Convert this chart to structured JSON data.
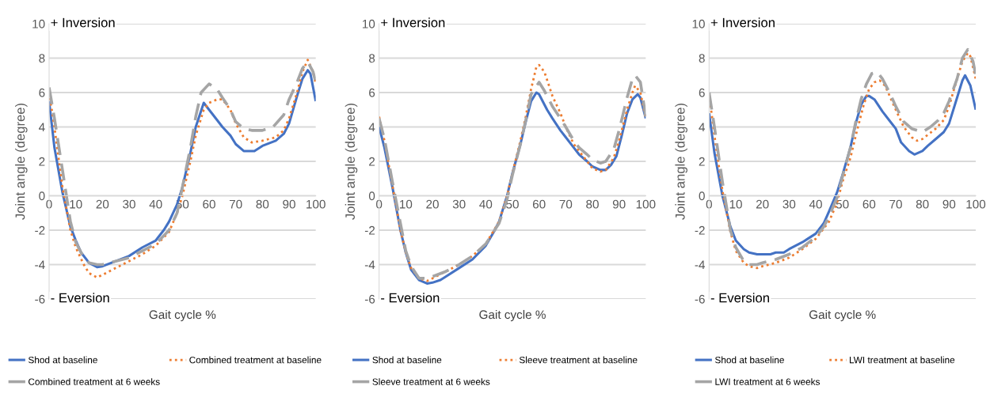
{
  "chart_data": [
    {
      "type": "line",
      "xlabel": "Gait cycle %",
      "ylabel": "Joint angle (degree)",
      "xlim": [
        0,
        100
      ],
      "xticks": [
        0,
        10,
        20,
        30,
        40,
        50,
        60,
        70,
        80,
        90,
        100
      ],
      "ylim": [
        -6,
        10
      ],
      "yticks": [
        -6,
        -4,
        -2,
        0,
        2,
        4,
        6,
        8,
        10
      ],
      "grid": "y",
      "legend": "bottom",
      "annotations": [
        "+ Inversion",
        "- Eversion"
      ],
      "series": [
        {
          "name": "Shod at baseline",
          "color": "#4472c4",
          "line_style": "solid",
          "x": [
            0,
            2,
            5,
            8,
            10,
            12,
            15,
            18,
            20,
            25,
            30,
            35,
            40,
            43,
            45,
            48,
            50,
            53,
            55,
            58,
            60,
            63,
            65,
            68,
            70,
            73,
            77,
            80,
            85,
            88,
            90,
            93,
            95,
            97,
            98,
            100
          ],
          "values": [
            5.5,
            2.8,
            0.2,
            -1.8,
            -2.6,
            -3.3,
            -3.9,
            -4.15,
            -4.1,
            -3.8,
            -3.5,
            -3.0,
            -2.6,
            -2.0,
            -1.5,
            -0.5,
            0.5,
            2.5,
            4.0,
            5.4,
            5.0,
            4.4,
            4.0,
            3.5,
            3.0,
            2.6,
            2.6,
            2.9,
            3.2,
            3.6,
            4.2,
            5.8,
            6.8,
            7.3,
            7.1,
            5.5
          ]
        },
        {
          "name": "Combined treatment at baseline",
          "color": "#ed7d31",
          "line_style": "dotted",
          "x": [
            0,
            2,
            5,
            8,
            10,
            13,
            15,
            18,
            20,
            25,
            30,
            35,
            40,
            45,
            48,
            50,
            53,
            55,
            58,
            60,
            63,
            65,
            68,
            70,
            73,
            76,
            80,
            85,
            88,
            90,
            93,
            95,
            97,
            99,
            100
          ],
          "values": [
            6.0,
            4.0,
            0.5,
            -2.0,
            -3.0,
            -4.0,
            -4.5,
            -4.75,
            -4.6,
            -4.2,
            -3.8,
            -3.4,
            -2.9,
            -2.1,
            -1.0,
            0.0,
            2.0,
            3.5,
            5.0,
            5.4,
            5.6,
            5.6,
            5.0,
            4.2,
            3.4,
            3.1,
            3.2,
            3.4,
            3.8,
            4.5,
            6.0,
            7.2,
            7.9,
            7.2,
            6.5
          ]
        },
        {
          "name": "Combined treatment at 6 weeks",
          "color": "#a5a5a5",
          "line_style": "dashed",
          "x": [
            0,
            2,
            5,
            8,
            10,
            13,
            15,
            18,
            20,
            25,
            30,
            35,
            40,
            45,
            48,
            50,
            53,
            55,
            57,
            60,
            63,
            65,
            68,
            70,
            73,
            76,
            80,
            84,
            88,
            90,
            93,
            95,
            97,
            99,
            100
          ],
          "values": [
            6.3,
            4.5,
            1.5,
            -1.5,
            -2.7,
            -3.6,
            -3.9,
            -4.0,
            -4.0,
            -3.8,
            -3.6,
            -3.2,
            -2.8,
            -2.0,
            -1.0,
            0.5,
            2.8,
            4.6,
            6.0,
            6.5,
            6.2,
            5.7,
            5.0,
            4.3,
            3.9,
            3.8,
            3.8,
            4.0,
            4.7,
            5.6,
            6.6,
            7.4,
            7.8,
            7.2,
            6.6
          ]
        }
      ]
    },
    {
      "type": "line",
      "xlabel": "Gait cycle %",
      "ylabel": "Joint angle (degree)",
      "xlim": [
        0,
        100
      ],
      "xticks": [
        0,
        10,
        20,
        30,
        40,
        50,
        60,
        70,
        80,
        90,
        100
      ],
      "ylim": [
        -6,
        10
      ],
      "yticks": [
        -6,
        -4,
        -2,
        0,
        2,
        4,
        6,
        8,
        10
      ],
      "grid": "y",
      "legend": "bottom",
      "annotations": [
        "+ Inversion",
        "- Eversion"
      ],
      "series": [
        {
          "name": "Shod at baseline",
          "color": "#4472c4",
          "line_style": "solid",
          "x": [
            0,
            2,
            5,
            8,
            10,
            12,
            15,
            18,
            20,
            23,
            25,
            30,
            35,
            40,
            43,
            45,
            48,
            50,
            53,
            55,
            57,
            59,
            60,
            63,
            65,
            68,
            70,
            73,
            75,
            78,
            80,
            83,
            85,
            87,
            89,
            91,
            93,
            95,
            97,
            98,
            100
          ],
          "values": [
            4.0,
            2.8,
            0.5,
            -2.0,
            -3.3,
            -4.3,
            -4.9,
            -5.1,
            -5.05,
            -4.9,
            -4.7,
            -4.2,
            -3.7,
            -2.9,
            -2.1,
            -1.5,
            0.0,
            1.3,
            3.0,
            4.3,
            5.5,
            6.0,
            5.9,
            5.0,
            4.5,
            3.8,
            3.4,
            2.8,
            2.4,
            2.0,
            1.7,
            1.5,
            1.5,
            1.8,
            2.3,
            3.5,
            4.8,
            5.6,
            5.9,
            5.7,
            4.5
          ]
        },
        {
          "name": "Sleeve treatment at baseline",
          "color": "#ed7d31",
          "line_style": "dotted",
          "x": [
            0,
            2,
            5,
            8,
            10,
            12,
            15,
            18,
            20,
            25,
            30,
            35,
            40,
            45,
            48,
            50,
            53,
            55,
            57,
            59,
            60,
            62,
            65,
            68,
            70,
            73,
            75,
            78,
            80,
            83,
            85,
            88,
            90,
            93,
            95,
            96,
            98,
            100
          ],
          "values": [
            4.6,
            3.2,
            0.6,
            -2.0,
            -3.3,
            -4.2,
            -4.8,
            -4.95,
            -4.8,
            -4.4,
            -4.0,
            -3.5,
            -2.8,
            -1.5,
            0.0,
            1.3,
            3.2,
            4.6,
            6.2,
            7.5,
            7.6,
            7.2,
            5.8,
            4.8,
            4.0,
            3.0,
            2.6,
            2.0,
            1.6,
            1.4,
            1.5,
            2.2,
            3.2,
            5.0,
            6.0,
            6.4,
            6.0,
            4.5
          ]
        },
        {
          "name": "Sleeve treatment at 6 weeks",
          "color": "#a5a5a5",
          "line_style": "dashed",
          "x": [
            0,
            2,
            5,
            8,
            10,
            12,
            15,
            18,
            20,
            25,
            30,
            35,
            40,
            45,
            48,
            50,
            53,
            55,
            57,
            60,
            62,
            65,
            68,
            70,
            73,
            75,
            78,
            80,
            83,
            85,
            88,
            90,
            93,
            95,
            96,
            98,
            100
          ],
          "values": [
            4.5,
            3.3,
            0.8,
            -1.6,
            -3.2,
            -4.1,
            -4.8,
            -4.8,
            -4.7,
            -4.4,
            -4.0,
            -3.5,
            -2.8,
            -1.6,
            -0.2,
            1.2,
            3.0,
            4.4,
            5.9,
            6.6,
            6.1,
            5.2,
            4.5,
            4.0,
            3.2,
            2.8,
            2.4,
            2.1,
            1.9,
            2.0,
            2.7,
            3.8,
            5.7,
            6.8,
            7.0,
            6.6,
            4.6
          ]
        }
      ]
    },
    {
      "type": "line",
      "xlabel": "Gait cycle %",
      "ylabel": "Joint angle (degree)",
      "xlim": [
        0,
        100
      ],
      "xticks": [
        0,
        10,
        20,
        30,
        40,
        50,
        60,
        70,
        80,
        90,
        100
      ],
      "ylim": [
        -6,
        10
      ],
      "yticks": [
        -6,
        -4,
        -2,
        0,
        2,
        4,
        6,
        8,
        10
      ],
      "grid": "y",
      "legend": "bottom",
      "annotations": [
        "+ Inversion",
        "- Eversion"
      ],
      "series": [
        {
          "name": "Shod at baseline",
          "color": "#4472c4",
          "line_style": "solid",
          "x": [
            0,
            2,
            5,
            8,
            10,
            13,
            15,
            18,
            20,
            23,
            25,
            28,
            30,
            35,
            40,
            43,
            45,
            48,
            50,
            53,
            55,
            57,
            59,
            60,
            62,
            65,
            68,
            70,
            72,
            75,
            77,
            80,
            82,
            85,
            88,
            90,
            93,
            95,
            96,
            98,
            100
          ],
          "values": [
            4.8,
            2.5,
            0.0,
            -1.8,
            -2.6,
            -3.1,
            -3.3,
            -3.4,
            -3.4,
            -3.4,
            -3.3,
            -3.3,
            -3.1,
            -2.7,
            -2.2,
            -1.6,
            -0.9,
            0.2,
            1.2,
            2.8,
            4.2,
            5.3,
            5.8,
            5.8,
            5.6,
            4.9,
            4.3,
            3.9,
            3.1,
            2.6,
            2.4,
            2.6,
            2.9,
            3.3,
            3.7,
            4.2,
            5.7,
            6.7,
            7.0,
            6.4,
            5.0
          ]
        },
        {
          "name": "LWI treatment at baseline",
          "color": "#ed7d31",
          "line_style": "dotted",
          "x": [
            0,
            2,
            5,
            8,
            10,
            13,
            15,
            18,
            20,
            25,
            30,
            35,
            40,
            45,
            48,
            50,
            53,
            55,
            58,
            60,
            62,
            64,
            66,
            68,
            70,
            73,
            76,
            78,
            80,
            85,
            88,
            90,
            93,
            95,
            97,
            98,
            100
          ],
          "values": [
            5.9,
            3.5,
            0.3,
            -2.1,
            -3.2,
            -3.9,
            -4.1,
            -4.2,
            -4.1,
            -3.9,
            -3.6,
            -3.1,
            -2.5,
            -1.5,
            -0.4,
            0.8,
            2.2,
            3.5,
            5.3,
            6.2,
            6.6,
            6.7,
            6.4,
            5.7,
            5.0,
            4.0,
            3.4,
            3.2,
            3.3,
            3.9,
            4.4,
            5.2,
            6.8,
            7.8,
            8.3,
            8.1,
            6.8
          ]
        },
        {
          "name": "LWI treatment at 6 weeks",
          "color": "#a5a5a5",
          "line_style": "dashed",
          "x": [
            0,
            2,
            5,
            8,
            10,
            13,
            15,
            18,
            20,
            25,
            30,
            35,
            40,
            43,
            45,
            48,
            50,
            53,
            55,
            57,
            59,
            61,
            63,
            65,
            68,
            70,
            73,
            76,
            78,
            80,
            83,
            86,
            88,
            90,
            93,
            95,
            97,
            99,
            100
          ],
          "values": [
            6.0,
            4.0,
            0.8,
            -2.0,
            -3.0,
            -3.8,
            -4.0,
            -4.0,
            -3.9,
            -3.7,
            -3.4,
            -3.0,
            -2.4,
            -1.8,
            -1.2,
            -0.1,
            1.1,
            2.8,
            4.3,
            5.6,
            6.5,
            7.1,
            7.2,
            6.8,
            5.9,
            5.2,
            4.3,
            3.9,
            3.8,
            3.7,
            4.0,
            4.4,
            4.8,
            5.5,
            6.8,
            8.0,
            8.5,
            7.8,
            7.0
          ]
        }
      ]
    }
  ]
}
